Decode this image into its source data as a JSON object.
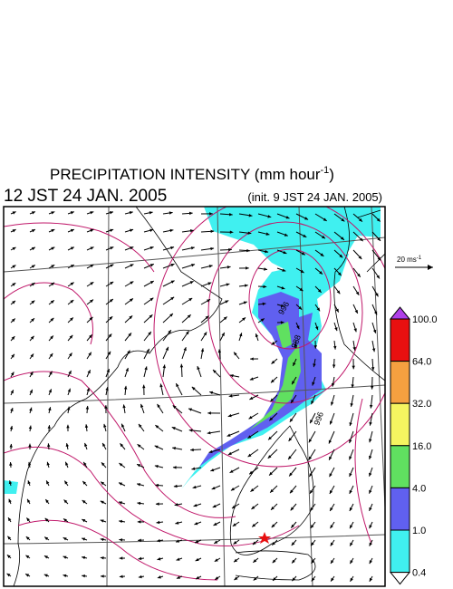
{
  "header": {
    "title": "PRECIPITATION INTENSITY (mm hour",
    "title_exponent": "-1",
    "title_close": ")",
    "valid_time": "12 JST 24 JAN. 2005",
    "init_time": "(init. 9 JST 24 JAN. 2005)"
  },
  "wind_reference": {
    "label": "20 ms",
    "exponent": "-1"
  },
  "colorbar": {
    "labels": [
      "100.0",
      "64.0",
      "32.0",
      "16.0",
      "4.0",
      "1.0",
      "0.4"
    ],
    "colors": [
      "#b040e8",
      "#e81010",
      "#f5a040",
      "#f5f560",
      "#60e060",
      "#6060f0",
      "#40f0f0",
      "#ffffff"
    ]
  },
  "contour_labels": [
    "996",
    "988",
    "996"
  ]
}
